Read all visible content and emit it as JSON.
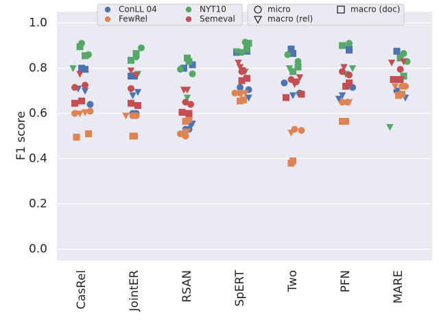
{
  "chart_data": {
    "type": "scatter",
    "ylabel": "F1 score",
    "xlabel": "",
    "ylim": [
      -0.05,
      1.05
    ],
    "yticks": [
      0.0,
      0.2,
      0.4,
      0.6,
      0.8,
      1.0
    ],
    "ytick_labels": [
      "0.0",
      "0.2",
      "0.4",
      "0.6",
      "0.8",
      "1.0"
    ],
    "grid": true,
    "background": "#eaeaf2",
    "categories": [
      "CasRel",
      "JointER",
      "RSAN",
      "SpERT",
      "Two",
      "PFN",
      "MARE"
    ],
    "legend": {
      "datasets": [
        {
          "name": "ConLL 04",
          "color": "#4c72b0"
        },
        {
          "name": "NYT10",
          "color": "#55a868"
        },
        {
          "name": "FewRel",
          "color": "#dd8452"
        },
        {
          "name": "Semeval",
          "color": "#c44e52"
        }
      ],
      "metrics": [
        {
          "name": "micro",
          "marker": "circle"
        },
        {
          "name": "macro (doc)",
          "marker": "square"
        },
        {
          "name": "macro (rel)",
          "marker": "triangle"
        }
      ],
      "placement": "top"
    },
    "series": [
      {
        "dataset": "ConLL 04",
        "metric": "micro",
        "color": "#4c72b0",
        "marker": "circle",
        "x": [
          "CasRel",
          "JointER",
          "JointER",
          "RSAN",
          "RSAN",
          "SpERT",
          "SpERT",
          "Two",
          "Two",
          "PFN",
          "MARE"
        ],
        "jitter": [
          0.25,
          -0.05,
          0.05,
          -0.05,
          0.05,
          0.0,
          0.25,
          -0.25,
          0.2,
          0.2,
          -0.05
        ],
        "y": [
          0.64,
          0.6,
          0.6,
          0.53,
          0.53,
          0.715,
          0.705,
          0.735,
          0.69,
          0.715,
          0.7
        ]
      },
      {
        "dataset": "ConLL 04",
        "metric": "macro (doc)",
        "color": "#4c72b0",
        "marker": "square",
        "x": [
          "CasRel",
          "CasRel",
          "JointER",
          "JointER",
          "RSAN",
          "RSAN",
          "SpERT",
          "SpERT",
          "Two",
          "Two",
          "PFN",
          "PFN",
          "MARE"
        ],
        "jitter": [
          0.0,
          0.1,
          -0.1,
          0.0,
          -0.1,
          0.15,
          -0.1,
          0.2,
          -0.05,
          0.0,
          0.1,
          0.1,
          -0.05
        ],
        "y": [
          0.8,
          0.795,
          0.765,
          0.765,
          0.8,
          0.815,
          0.87,
          0.875,
          0.885,
          0.865,
          0.88,
          0.885,
          0.875
        ]
      },
      {
        "dataset": "ConLL 04",
        "metric": "macro (rel)",
        "color": "#4c72b0",
        "marker": "triangle",
        "x": [
          "CasRel",
          "CasRel",
          "JointER",
          "JointER",
          "RSAN",
          "RSAN",
          "SpERT",
          "Two",
          "PFN",
          "PFN",
          "MARE"
        ],
        "jitter": [
          -0.1,
          0.1,
          -0.05,
          0.1,
          0.1,
          0.15,
          0.25,
          0.0,
          -0.2,
          -0.1,
          0.2
        ],
        "y": [
          0.71,
          0.7,
          0.68,
          0.695,
          0.545,
          0.555,
          0.67,
          0.68,
          0.665,
          0.68,
          0.67
        ]
      },
      {
        "dataset": "NYT10",
        "metric": "micro",
        "color": "#55a868",
        "marker": "circle",
        "x": [
          "CasRel",
          "CasRel",
          "JointER",
          "JointER",
          "RSAN",
          "RSAN",
          "SpERT",
          "SpERT",
          "Two",
          "Two",
          "PFN",
          "MARE",
          "MARE"
        ],
        "jitter": [
          0.0,
          0.2,
          0.05,
          0.2,
          -0.2,
          0.15,
          0.05,
          0.15,
          -0.15,
          0.15,
          0.1,
          0.15,
          0.25
        ],
        "y": [
          0.91,
          0.86,
          0.85,
          0.89,
          0.795,
          0.775,
          0.87,
          0.915,
          0.86,
          0.83,
          0.91,
          0.865,
          0.83
        ]
      },
      {
        "dataset": "NYT10",
        "metric": "macro (doc)",
        "color": "#55a868",
        "marker": "square",
        "x": [
          "CasRel",
          "CasRel",
          "JointER",
          "JointER",
          "RSAN",
          "RSAN",
          "SpERT",
          "SpERT",
          "Two",
          "Two",
          "PFN",
          "MARE",
          "MARE"
        ],
        "jitter": [
          -0.05,
          0.1,
          -0.1,
          0.05,
          0.0,
          0.05,
          0.2,
          0.25,
          0.0,
          0.15,
          -0.1,
          0.05,
          0.15
        ],
        "y": [
          0.895,
          0.855,
          0.835,
          0.865,
          0.845,
          0.83,
          0.885,
          0.91,
          0.785,
          0.805,
          0.9,
          0.845,
          0.765
        ]
      },
      {
        "dataset": "NYT10",
        "metric": "macro (rel)",
        "color": "#55a868",
        "marker": "triangle",
        "x": [
          "CasRel",
          "JointER",
          "RSAN",
          "SpERT",
          "SpERT",
          "Two",
          "PFN",
          "PFN",
          "MARE"
        ],
        "jitter": [
          -0.25,
          0.1,
          0.0,
          -0.1,
          0.15,
          -0.1,
          0.0,
          0.2,
          -0.25
        ],
        "y": [
          0.8,
          0.775,
          0.67,
          0.875,
          0.785,
          0.8,
          0.775,
          0.8,
          0.54
        ]
      },
      {
        "dataset": "FewRel",
        "metric": "micro",
        "color": "#dd8452",
        "marker": "circle",
        "x": [
          "CasRel",
          "CasRel",
          "JointER",
          "JointER",
          "RSAN",
          "RSAN",
          "SpERT",
          "SpERT",
          "Two",
          "Two",
          "PFN",
          "PFN",
          "MARE",
          "MARE"
        ],
        "jitter": [
          -0.2,
          0.25,
          -0.05,
          0.05,
          -0.2,
          -0.05,
          -0.15,
          0.0,
          0.05,
          0.25,
          -0.1,
          0.05,
          0.1,
          0.2
        ],
        "y": [
          0.6,
          0.61,
          0.59,
          0.59,
          0.51,
          0.5,
          0.69,
          0.69,
          0.53,
          0.525,
          0.65,
          0.65,
          0.72,
          0.72
        ]
      },
      {
        "dataset": "FewRel",
        "metric": "macro (doc)",
        "color": "#dd8452",
        "marker": "square",
        "x": [
          "CasRel",
          "CasRel",
          "JointER",
          "JointER",
          "RSAN",
          "RSAN",
          "SpERT",
          "SpERT",
          "Two",
          "Two",
          "PFN",
          "PFN",
          "MARE",
          "MARE"
        ],
        "jitter": [
          -0.15,
          0.2,
          -0.05,
          0.0,
          -0.05,
          0.05,
          0.0,
          0.1,
          -0.05,
          0.0,
          -0.1,
          0.0,
          0.0,
          0.1
        ],
        "y": [
          0.495,
          0.51,
          0.5,
          0.5,
          0.565,
          0.575,
          0.655,
          0.66,
          0.38,
          0.39,
          0.565,
          0.565,
          0.68,
          0.685
        ]
      },
      {
        "dataset": "FewRel",
        "metric": "macro (rel)",
        "color": "#dd8452",
        "marker": "triangle",
        "x": [
          "CasRel",
          "CasRel",
          "JointER",
          "RSAN",
          "RSAN",
          "SpERT",
          "Two",
          "PFN",
          "MARE"
        ],
        "jitter": [
          -0.05,
          0.1,
          -0.25,
          -0.05,
          0.0,
          0.15,
          -0.05,
          0.1,
          -0.1
        ],
        "y": [
          0.6,
          0.605,
          0.59,
          0.52,
          0.52,
          0.69,
          0.515,
          0.65,
          0.72
        ]
      },
      {
        "dataset": "Semeval",
        "metric": "micro",
        "color": "#c44e52",
        "marker": "circle",
        "x": [
          "CasRel",
          "CasRel",
          "JointER",
          "RSAN",
          "RSAN",
          "SpERT",
          "SpERT",
          "Two",
          "Two",
          "PFN",
          "PFN",
          "MARE"
        ],
        "jitter": [
          -0.2,
          0.1,
          -0.1,
          -0.05,
          0.1,
          0.05,
          0.1,
          -0.05,
          0.1,
          -0.1,
          0.1,
          0.05
        ],
        "y": [
          0.715,
          0.725,
          0.71,
          0.65,
          0.64,
          0.785,
          0.79,
          0.75,
          0.74,
          0.785,
          0.77,
          0.795
        ]
      },
      {
        "dataset": "Semeval",
        "metric": "macro (doc)",
        "color": "#c44e52",
        "marker": "square",
        "x": [
          "CasRel",
          "CasRel",
          "JointER",
          "JointER",
          "RSAN",
          "RSAN",
          "SpERT",
          "SpERT",
          "Two",
          "Two",
          "PFN",
          "PFN",
          "MARE",
          "MARE"
        ],
        "jitter": [
          -0.2,
          0.0,
          -0.1,
          0.1,
          -0.15,
          0.05,
          0.05,
          0.2,
          -0.2,
          0.25,
          0.0,
          0.1,
          -0.15,
          0.05
        ],
        "y": [
          0.645,
          0.655,
          0.645,
          0.635,
          0.605,
          0.6,
          0.745,
          0.755,
          0.67,
          0.685,
          0.72,
          0.735,
          0.75,
          0.75
        ]
      },
      {
        "dataset": "Semeval",
        "metric": "macro (rel)",
        "color": "#c44e52",
        "marker": "triangle",
        "x": [
          "CasRel",
          "JointER",
          "JointER",
          "RSAN",
          "RSAN",
          "SpERT",
          "SpERT",
          "Two",
          "Two",
          "PFN",
          "MARE",
          "MARE"
        ],
        "jitter": [
          -0.05,
          -0.1,
          0.05,
          -0.1,
          0.0,
          -0.05,
          0.0,
          0.05,
          0.2,
          -0.05,
          -0.2,
          0.15
        ],
        "y": [
          0.775,
          0.79,
          0.77,
          0.705,
          0.705,
          0.825,
          0.805,
          0.73,
          0.76,
          0.805,
          0.825,
          0.83
        ]
      }
    ]
  }
}
